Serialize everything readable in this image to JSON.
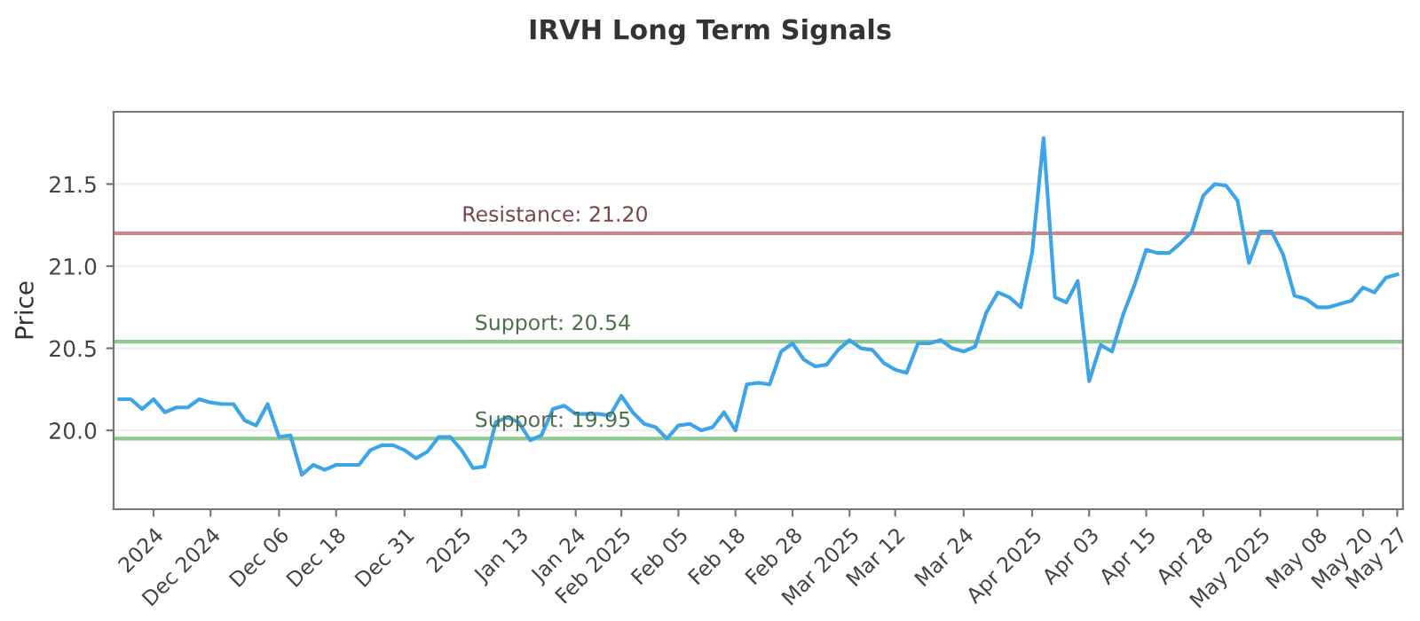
{
  "chart_data": {
    "type": "line",
    "title": "IRVH Long Term Signals",
    "ylabel": "Price",
    "categories": [
      null,
      null,
      null,
      "2024",
      null,
      null,
      null,
      null,
      "Dec 2024",
      null,
      null,
      null,
      null,
      null,
      "Dec 06",
      null,
      null,
      null,
      null,
      "Dec 18",
      null,
      null,
      null,
      null,
      null,
      "Dec 31",
      null,
      null,
      null,
      null,
      "2025",
      null,
      null,
      null,
      null,
      "Jan 13",
      null,
      null,
      null,
      null,
      "Jan 24",
      null,
      null,
      null,
      "Feb 2025",
      null,
      null,
      null,
      null,
      "Feb 05",
      null,
      null,
      null,
      null,
      "Feb 18",
      null,
      null,
      null,
      null,
      "Feb 28",
      null,
      null,
      null,
      null,
      "Mar 2025",
      null,
      null,
      null,
      "Mar 12",
      null,
      null,
      null,
      null,
      null,
      "Mar 24",
      null,
      null,
      null,
      null,
      null,
      "Apr 2025",
      null,
      null,
      null,
      null,
      "Apr 03",
      null,
      null,
      null,
      null,
      "Apr 15",
      null,
      null,
      null,
      null,
      "Apr 28",
      null,
      null,
      null,
      null,
      "May 2025",
      null,
      null,
      null,
      null,
      "May 08",
      null,
      null,
      null,
      "May 20",
      null,
      null,
      "May 27"
    ],
    "series": [
      {
        "color": "#3ea4e8",
        "values": [
          20.19,
          20.19,
          20.13,
          20.19,
          20.11,
          20.14,
          20.14,
          20.19,
          20.17,
          20.16,
          20.16,
          20.06,
          20.03,
          20.16,
          19.96,
          19.97,
          19.73,
          19.79,
          19.76,
          19.79,
          19.79,
          19.79,
          19.88,
          19.91,
          19.91,
          19.88,
          19.83,
          19.87,
          19.96,
          19.96,
          19.88,
          19.77,
          19.78,
          20.05,
          20.08,
          20.05,
          19.94,
          19.97,
          20.13,
          20.15,
          20.1,
          20.1,
          20.1,
          20.09,
          20.21,
          20.11,
          20.04,
          20.02,
          19.95,
          20.03,
          20.04,
          20.0,
          20.02,
          20.11,
          20.0,
          20.28,
          20.29,
          20.28,
          20.48,
          20.53,
          20.43,
          20.39,
          20.4,
          20.49,
          20.55,
          20.5,
          20.49,
          20.41,
          20.37,
          20.35,
          20.53,
          20.53,
          20.55,
          20.5,
          20.48,
          20.51,
          20.72,
          20.84,
          20.81,
          20.75,
          21.08,
          21.78,
          20.81,
          20.78,
          20.91,
          20.3,
          20.52,
          20.48,
          20.71,
          20.89,
          21.1,
          21.08,
          21.08,
          21.14,
          21.21,
          21.43,
          21.5,
          21.49,
          21.4,
          21.02,
          21.21,
          21.21,
          21.07,
          20.82,
          20.8,
          20.75,
          20.75,
          20.77,
          20.79,
          20.87,
          20.84,
          20.93,
          20.95
        ]
      }
    ],
    "ylim": [
      19.52,
      21.94
    ],
    "yticks": [
      {
        "value": 20.0,
        "label": "20.0"
      },
      {
        "value": 20.5,
        "label": "20.5"
      },
      {
        "value": 21.0,
        "label": "21.0"
      },
      {
        "value": 21.5,
        "label": "21.5"
      }
    ],
    "grid": "y",
    "ref_lines": [
      {
        "axis": "y",
        "value": 21.2,
        "label": "Resistance: 21.20",
        "color": "#d98080"
      },
      {
        "axis": "y",
        "value": 20.54,
        "label": "Support: 20.54",
        "color": "#8cc98c"
      },
      {
        "axis": "y",
        "value": 19.95,
        "label": "Support: 19.95",
        "color": "#8cc98c"
      }
    ]
  }
}
